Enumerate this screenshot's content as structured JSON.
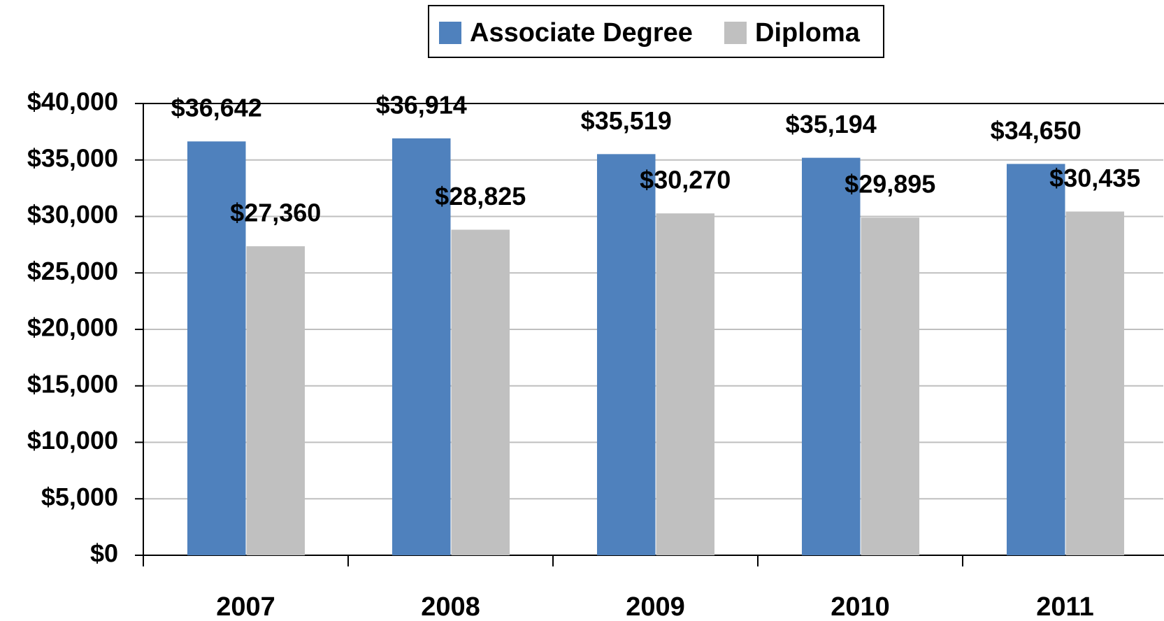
{
  "chart_data": {
    "type": "bar",
    "categories": [
      "2007",
      "2008",
      "2009",
      "2010",
      "2011"
    ],
    "series": [
      {
        "name": "Associate Degree",
        "color": "#4f81bd",
        "values": [
          36642,
          36914,
          35519,
          35194,
          34650
        ],
        "value_labels": [
          "$36,642",
          "$36,914",
          "$35,519",
          "$35,194",
          "$34,650"
        ]
      },
      {
        "name": "Diploma",
        "color": "#c0c0c0",
        "values": [
          27360,
          28825,
          30270,
          29895,
          30435
        ],
        "value_labels": [
          "$27,360",
          "$28,825",
          "$30,270",
          "$29,895",
          "$30,435"
        ]
      }
    ],
    "ylim": [
      0,
      40000
    ],
    "yticks": [
      {
        "value": 0,
        "label": "$0"
      },
      {
        "value": 5000,
        "label": "$5,000"
      },
      {
        "value": 10000,
        "label": "$10,000"
      },
      {
        "value": 15000,
        "label": "$15,000"
      },
      {
        "value": 20000,
        "label": "$20,000"
      },
      {
        "value": 25000,
        "label": "$25,000"
      },
      {
        "value": 30000,
        "label": "$30,000"
      },
      {
        "value": 35000,
        "label": "$35,000"
      },
      {
        "value": 40000,
        "label": "$40,000"
      }
    ],
    "grid": true,
    "legend": "top"
  }
}
